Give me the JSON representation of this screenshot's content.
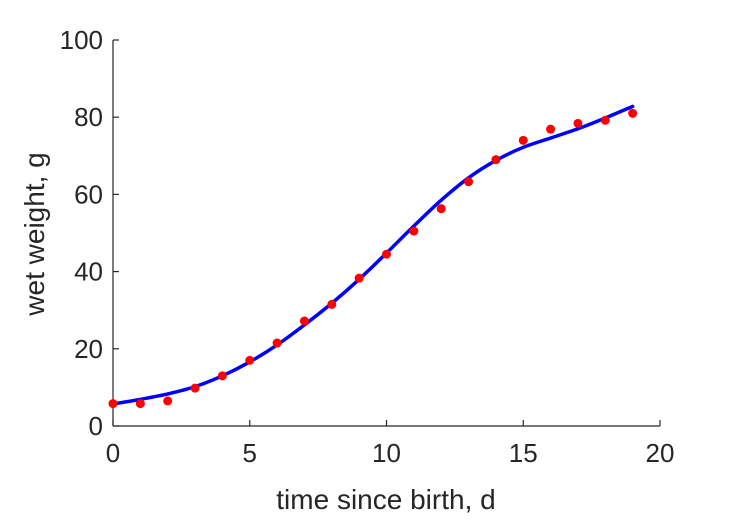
{
  "chart_data": {
    "type": "scatter",
    "title": "",
    "xlabel": "time since birth, d",
    "ylabel": "wet weight, g",
    "xlim": [
      0,
      20
    ],
    "ylim": [
      0,
      100
    ],
    "xticks": [
      0,
      5,
      10,
      15,
      20
    ],
    "yticks": [
      0,
      20,
      40,
      60,
      80,
      100
    ],
    "grid": false,
    "legend": "none",
    "series": [
      {
        "kind": "points",
        "color": "#ff0000",
        "x": [
          0,
          1,
          2,
          3,
          4,
          5,
          6,
          7,
          8,
          9,
          10,
          11,
          12,
          13,
          14,
          15,
          16,
          17,
          18,
          19
        ],
        "y": [
          5.8,
          5.8,
          6.5,
          9.8,
          13.0,
          17.0,
          21.5,
          27.2,
          31.5,
          38.3,
          44.5,
          50.5,
          56.3,
          63.3,
          69.0,
          74.0,
          76.9,
          78.4,
          79.2,
          81.0
        ]
      },
      {
        "kind": "curve",
        "color": "#0000ff",
        "x": [
          0,
          1,
          2,
          3,
          4,
          5,
          6,
          7,
          8,
          9,
          10,
          11,
          12,
          13,
          14,
          15,
          16,
          17,
          18,
          19
        ],
        "y": [
          5.7,
          6.9,
          8.3,
          10.2,
          13.0,
          16.6,
          21.0,
          26.2,
          31.8,
          38.0,
          44.8,
          51.8,
          58.5,
          64.3,
          68.8,
          72.2,
          74.6,
          77.0,
          79.8,
          82.8
        ]
      }
    ]
  }
}
